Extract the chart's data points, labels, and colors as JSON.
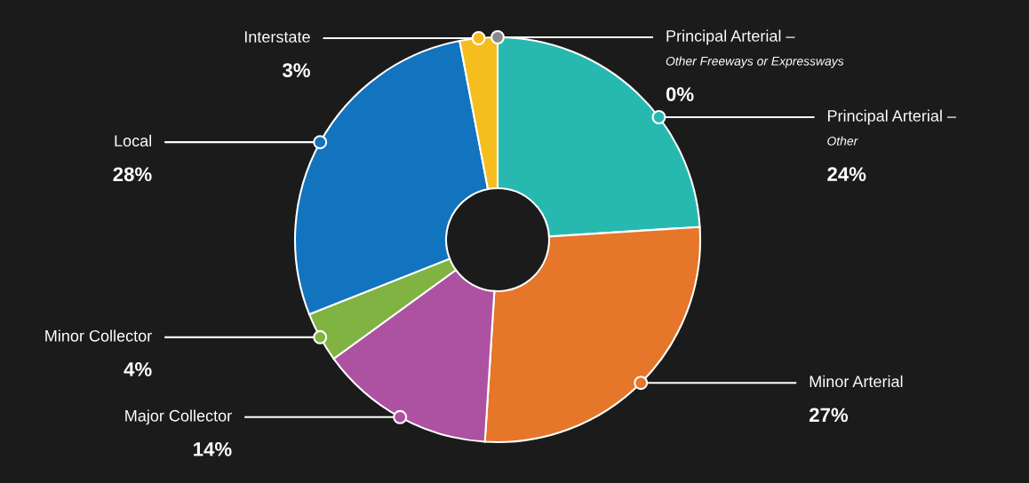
{
  "chart_data": {
    "type": "donut",
    "categories": [
      "Principal Arterial –\nOther Freeways or Expressways",
      "Principal Arterial –\nOther",
      "Minor Arterial",
      "Major Collector",
      "Minor Collector",
      "Local",
      "Interstate"
    ],
    "values": [
      0,
      24,
      27,
      14,
      4,
      28,
      3
    ],
    "value_labels": [
      "0%",
      "24%",
      "27%",
      "14%",
      "4%",
      "28%",
      "3%"
    ],
    "colors": [
      "#8a8a8a",
      "#27b9b0",
      "#e5762a",
      "#ad52a0",
      "#80b341",
      "#1273be",
      "#f6bd1f"
    ]
  }
}
